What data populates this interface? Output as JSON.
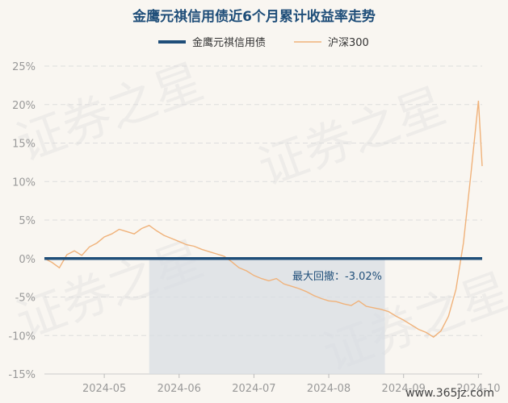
{
  "chart_data": {
    "type": "line",
    "title": "金鹰元祺信用债近6个月累计收益率走势",
    "y_unit": "%",
    "ylim": [
      -15,
      25
    ],
    "y_ticks": [
      25,
      20,
      15,
      10,
      5,
      0,
      -5,
      -10,
      -15
    ],
    "y_tick_labels": [
      "25%",
      "20%",
      "15%",
      "10%",
      "5%",
      "0%",
      "-5%",
      "-10%",
      "-15%"
    ],
    "x_tick_labels": [
      "2024-05",
      "2024-06",
      "2024-07",
      "2024-08",
      "2024-09",
      "2024-10"
    ],
    "x_ticks": [
      1,
      2,
      3,
      4,
      5,
      6
    ],
    "xlim": [
      0.2,
      6.05
    ],
    "grid": true,
    "legend_position": "top",
    "series": [
      {
        "name": "金鹰元祺信用债",
        "color": "#1f4e79",
        "x": [
          0.2,
          0.3,
          0.4,
          0.5,
          0.6,
          0.7,
          0.8,
          0.9,
          1.0,
          1.1,
          1.2,
          1.3,
          1.4,
          1.5,
          1.6,
          1.7,
          1.8,
          1.9,
          2.0,
          2.1,
          2.2,
          2.3,
          2.4,
          2.5,
          2.6,
          2.7,
          2.8,
          2.9,
          3.0,
          3.1,
          3.2,
          3.3,
          3.4,
          3.5,
          3.6,
          3.7,
          3.8,
          3.9,
          4.0,
          4.1,
          4.2,
          4.3,
          4.4,
          4.5,
          4.6,
          4.7,
          4.8,
          4.9,
          5.0,
          5.1,
          5.2,
          5.3,
          5.4,
          5.5,
          5.6,
          5.7,
          5.8,
          5.9,
          6.0,
          6.05
        ],
        "values": [
          0,
          0,
          0,
          0,
          0,
          0,
          0,
          0,
          0,
          0,
          0,
          0,
          0,
          0,
          0,
          0,
          0,
          0,
          0,
          0,
          0,
          0,
          0,
          0,
          0,
          0,
          0,
          0,
          0,
          0,
          0,
          0,
          0,
          0,
          0,
          0,
          0,
          0,
          0,
          0,
          0,
          0,
          0,
          0,
          0,
          0,
          0,
          0,
          0,
          0,
          0,
          0,
          0,
          0,
          0,
          0,
          0,
          0,
          0,
          0
        ]
      },
      {
        "name": "沪深300",
        "color": "#f0b27a",
        "x": [
          0.2,
          0.3,
          0.4,
          0.5,
          0.6,
          0.7,
          0.8,
          0.9,
          1.0,
          1.1,
          1.2,
          1.3,
          1.4,
          1.5,
          1.6,
          1.7,
          1.8,
          1.9,
          2.0,
          2.1,
          2.2,
          2.3,
          2.4,
          2.5,
          2.6,
          2.7,
          2.8,
          2.9,
          3.0,
          3.1,
          3.2,
          3.3,
          3.4,
          3.5,
          3.6,
          3.7,
          3.8,
          3.9,
          4.0,
          4.1,
          4.2,
          4.3,
          4.4,
          4.5,
          4.6,
          4.7,
          4.8,
          4.9,
          5.0,
          5.1,
          5.2,
          5.3,
          5.4,
          5.5,
          5.6,
          5.7,
          5.8,
          5.9,
          6.0,
          6.05
        ],
        "values": [
          0,
          -0.5,
          -1.2,
          0.5,
          1.0,
          0.4,
          1.5,
          2.0,
          2.8,
          3.2,
          3.8,
          3.5,
          3.2,
          3.9,
          4.3,
          3.6,
          3.0,
          2.6,
          2.2,
          1.8,
          1.6,
          1.2,
          0.9,
          0.6,
          0.3,
          -0.4,
          -1.2,
          -1.6,
          -2.2,
          -2.6,
          -2.9,
          -2.6,
          -3.3,
          -3.6,
          -3.9,
          -4.3,
          -4.8,
          -5.2,
          -5.5,
          -5.6,
          -5.9,
          -6.1,
          -5.5,
          -6.2,
          -6.4,
          -6.6,
          -6.9,
          -7.5,
          -8.0,
          -8.6,
          -9.2,
          -9.6,
          -10.2,
          -9.4,
          -7.5,
          -4.0,
          2.0,
          11.0,
          20.5,
          12.0
        ]
      }
    ],
    "annotation": {
      "text": "最大回撤：-3.02%",
      "x_range": [
        1.6,
        4.75
      ]
    }
  },
  "watermark": {
    "text": "证券之星",
    "url": "www.365jz.com"
  },
  "colors": {
    "background": "#f9f6f1",
    "fund": "#1f4e79",
    "index": "#f0b27a",
    "drawdown_band": "#d8dde3"
  }
}
